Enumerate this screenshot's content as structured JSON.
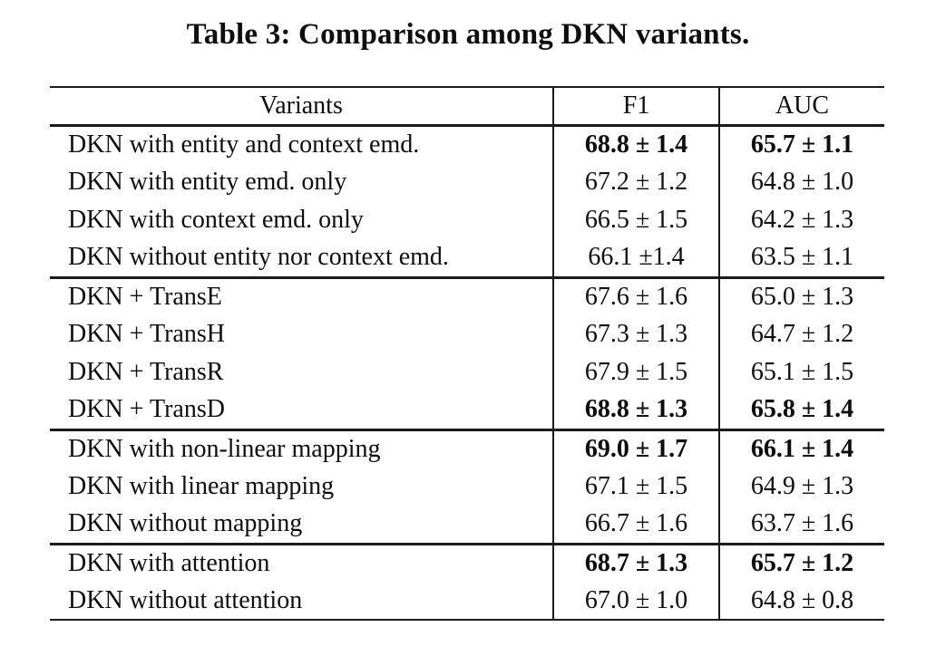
{
  "colors": {
    "background": "#ffffff",
    "text": "#0e0e0e",
    "rule": "#1b1b1b"
  },
  "caption": "Table 3: Comparison among DKN variants.",
  "table": {
    "columns": {
      "variants": "Variants",
      "f1": "F1",
      "auc": "AUC"
    },
    "groups": [
      {
        "rows": [
          {
            "variant": "DKN with entity and context emd.",
            "f1": "68.8 ± 1.4",
            "auc": "65.7 ± 1.1",
            "bold": true
          },
          {
            "variant": "DKN with entity emd. only",
            "f1": "67.2 ± 1.2",
            "auc": "64.8 ± 1.0",
            "bold": false
          },
          {
            "variant": "DKN with context emd. only",
            "f1": "66.5 ± 1.5",
            "auc": "64.2 ± 1.3",
            "bold": false
          },
          {
            "variant": "DKN without entity nor context emd.",
            "f1": "66.1 ±1.4",
            "auc": "63.5 ± 1.1",
            "bold": false
          }
        ]
      },
      {
        "rows": [
          {
            "variant": "DKN + TransE",
            "f1": "67.6 ± 1.6",
            "auc": "65.0 ± 1.3",
            "bold": false
          },
          {
            "variant": "DKN + TransH",
            "f1": "67.3 ± 1.3",
            "auc": "64.7 ± 1.2",
            "bold": false
          },
          {
            "variant": "DKN + TransR",
            "f1": "67.9 ± 1.5",
            "auc": "65.1 ± 1.5",
            "bold": false
          },
          {
            "variant": "DKN + TransD",
            "f1": "68.8 ± 1.3",
            "auc": "65.8 ± 1.4",
            "bold": true
          }
        ]
      },
      {
        "rows": [
          {
            "variant": "DKN with non-linear mapping",
            "f1": "69.0 ± 1.7",
            "auc": "66.1 ± 1.4",
            "bold": true
          },
          {
            "variant": "DKN with linear mapping",
            "f1": "67.1 ± 1.5",
            "auc": "64.9 ± 1.3",
            "bold": false
          },
          {
            "variant": "DKN without mapping",
            "f1": "66.7 ± 1.6",
            "auc": "63.7 ± 1.6",
            "bold": false
          }
        ]
      },
      {
        "rows": [
          {
            "variant": "DKN with attention",
            "f1": "68.7 ± 1.3",
            "auc": "65.7 ± 1.2",
            "bold": true
          },
          {
            "variant": "DKN without attention",
            "f1": "67.0 ± 1.0",
            "auc": "64.8 ± 0.8",
            "bold": false
          }
        ]
      }
    ]
  }
}
